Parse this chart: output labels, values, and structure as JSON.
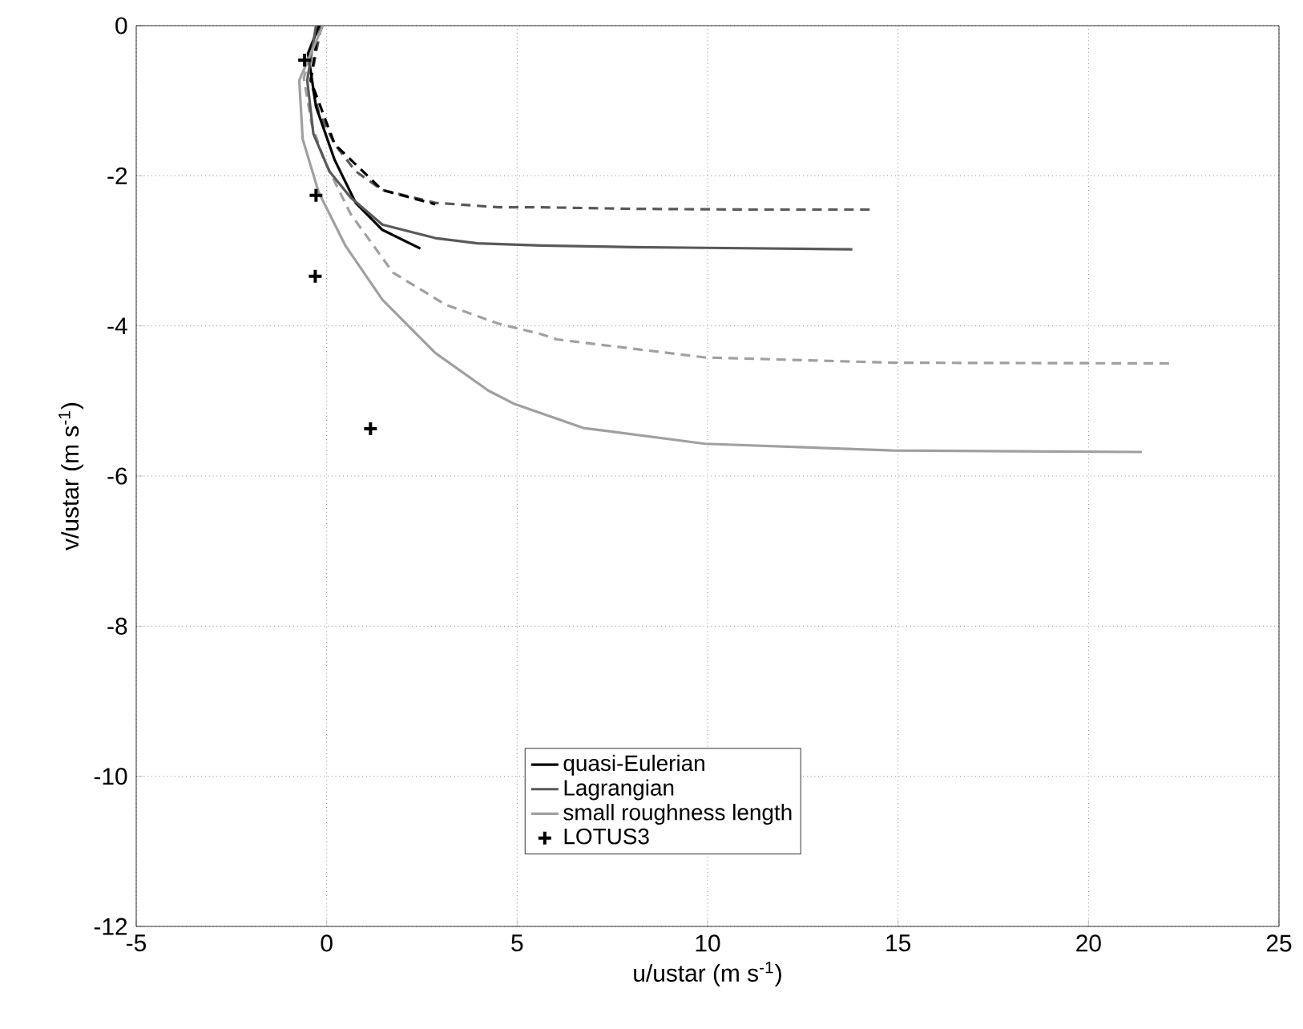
{
  "chart_data": {
    "type": "line",
    "xlabel": "u/ustar (m s$^{-1}$)",
    "ylabel": "v/ustar (m s$^{-1}$)",
    "xlim": [
      -5,
      25
    ],
    "ylim": [
      -12,
      0
    ],
    "xticks": [
      -5,
      0,
      5,
      10,
      15,
      20,
      25
    ],
    "yticks": [
      -12,
      -10,
      -8,
      -6,
      -4,
      -2,
      0
    ],
    "grid": true,
    "legend": "bottom",
    "series": [
      {
        "line_style": "dashed",
        "color": "#595959",
        "x": [
          -0.14,
          -0.42,
          -0.21,
          0.21,
          0.76,
          1.46,
          2.85,
          4.51,
          5.63,
          8,
          11,
          14.3
        ],
        "values": [
          0,
          -0.73,
          -1.15,
          -1.58,
          -1.94,
          -2.19,
          -2.36,
          -2.42,
          -2.42,
          -2.44,
          -2.45,
          -2.45
        ]
      },
      {
        "line_style": "dashed",
        "color": "#000000",
        "x": [
          -0.2,
          -0.42,
          0.21,
          1.46,
          2.85
        ],
        "values": [
          0,
          -0.73,
          -1.58,
          -2.19,
          -2.38
        ]
      },
      {
        "line_style": "dashed",
        "color": "#a0a0a0",
        "x": [
          -0.2,
          -0.6,
          -0.4,
          -0.07,
          0.63,
          1.74,
          3.13,
          4.51,
          5.63,
          6.04,
          9.93,
          14.86,
          22.26
        ],
        "values": [
          0,
          -0.7,
          -1.3,
          -1.79,
          -2.51,
          -3.29,
          -3.72,
          -3.97,
          -4.11,
          -4.18,
          -4.42,
          -4.49,
          -4.5
        ]
      },
      {
        "name": "quasi-Eulerian",
        "line_style": "solid",
        "color": "#000000",
        "x": [
          -0.2,
          -0.49,
          -0.28,
          0.21,
          0.76,
          1.46,
          2.46
        ],
        "values": [
          0,
          -0.37,
          -1.08,
          -1.79,
          -2.36,
          -2.72,
          -2.97
        ]
      },
      {
        "name": "Lagrangian",
        "line_style": "solid",
        "color": "#595959",
        "x": [
          -0.28,
          -0.51,
          -0.35,
          0.07,
          0.63,
          1.46,
          2.85,
          3.96,
          5.63,
          8,
          9.93,
          13.8
        ],
        "values": [
          0,
          -0.73,
          -1.44,
          -1.94,
          -2.29,
          -2.65,
          -2.83,
          -2.9,
          -2.93,
          -2.95,
          -2.96,
          -2.98
        ]
      },
      {
        "name": "small roughness length",
        "line_style": "solid",
        "color": "#a0a0a0",
        "x": [
          -0.1,
          -0.72,
          -0.63,
          -0.21,
          0.49,
          1.46,
          2.85,
          4.24,
          4.93,
          6.74,
          9.93,
          14.86,
          21.4
        ],
        "values": [
          0,
          -0.73,
          -1.51,
          -2.22,
          -2.93,
          -3.65,
          -4.36,
          -4.86,
          -5.04,
          -5.36,
          -5.57,
          -5.66,
          -5.68
        ]
      },
      {
        "name": "LOTUS3",
        "type": "scatter",
        "marker": "cross",
        "color": "#000000",
        "x": [
          -0.58,
          -0.28,
          -0.3,
          1.15
        ],
        "values": [
          -0.46,
          -2.26,
          -3.34,
          -5.37
        ]
      }
    ]
  }
}
